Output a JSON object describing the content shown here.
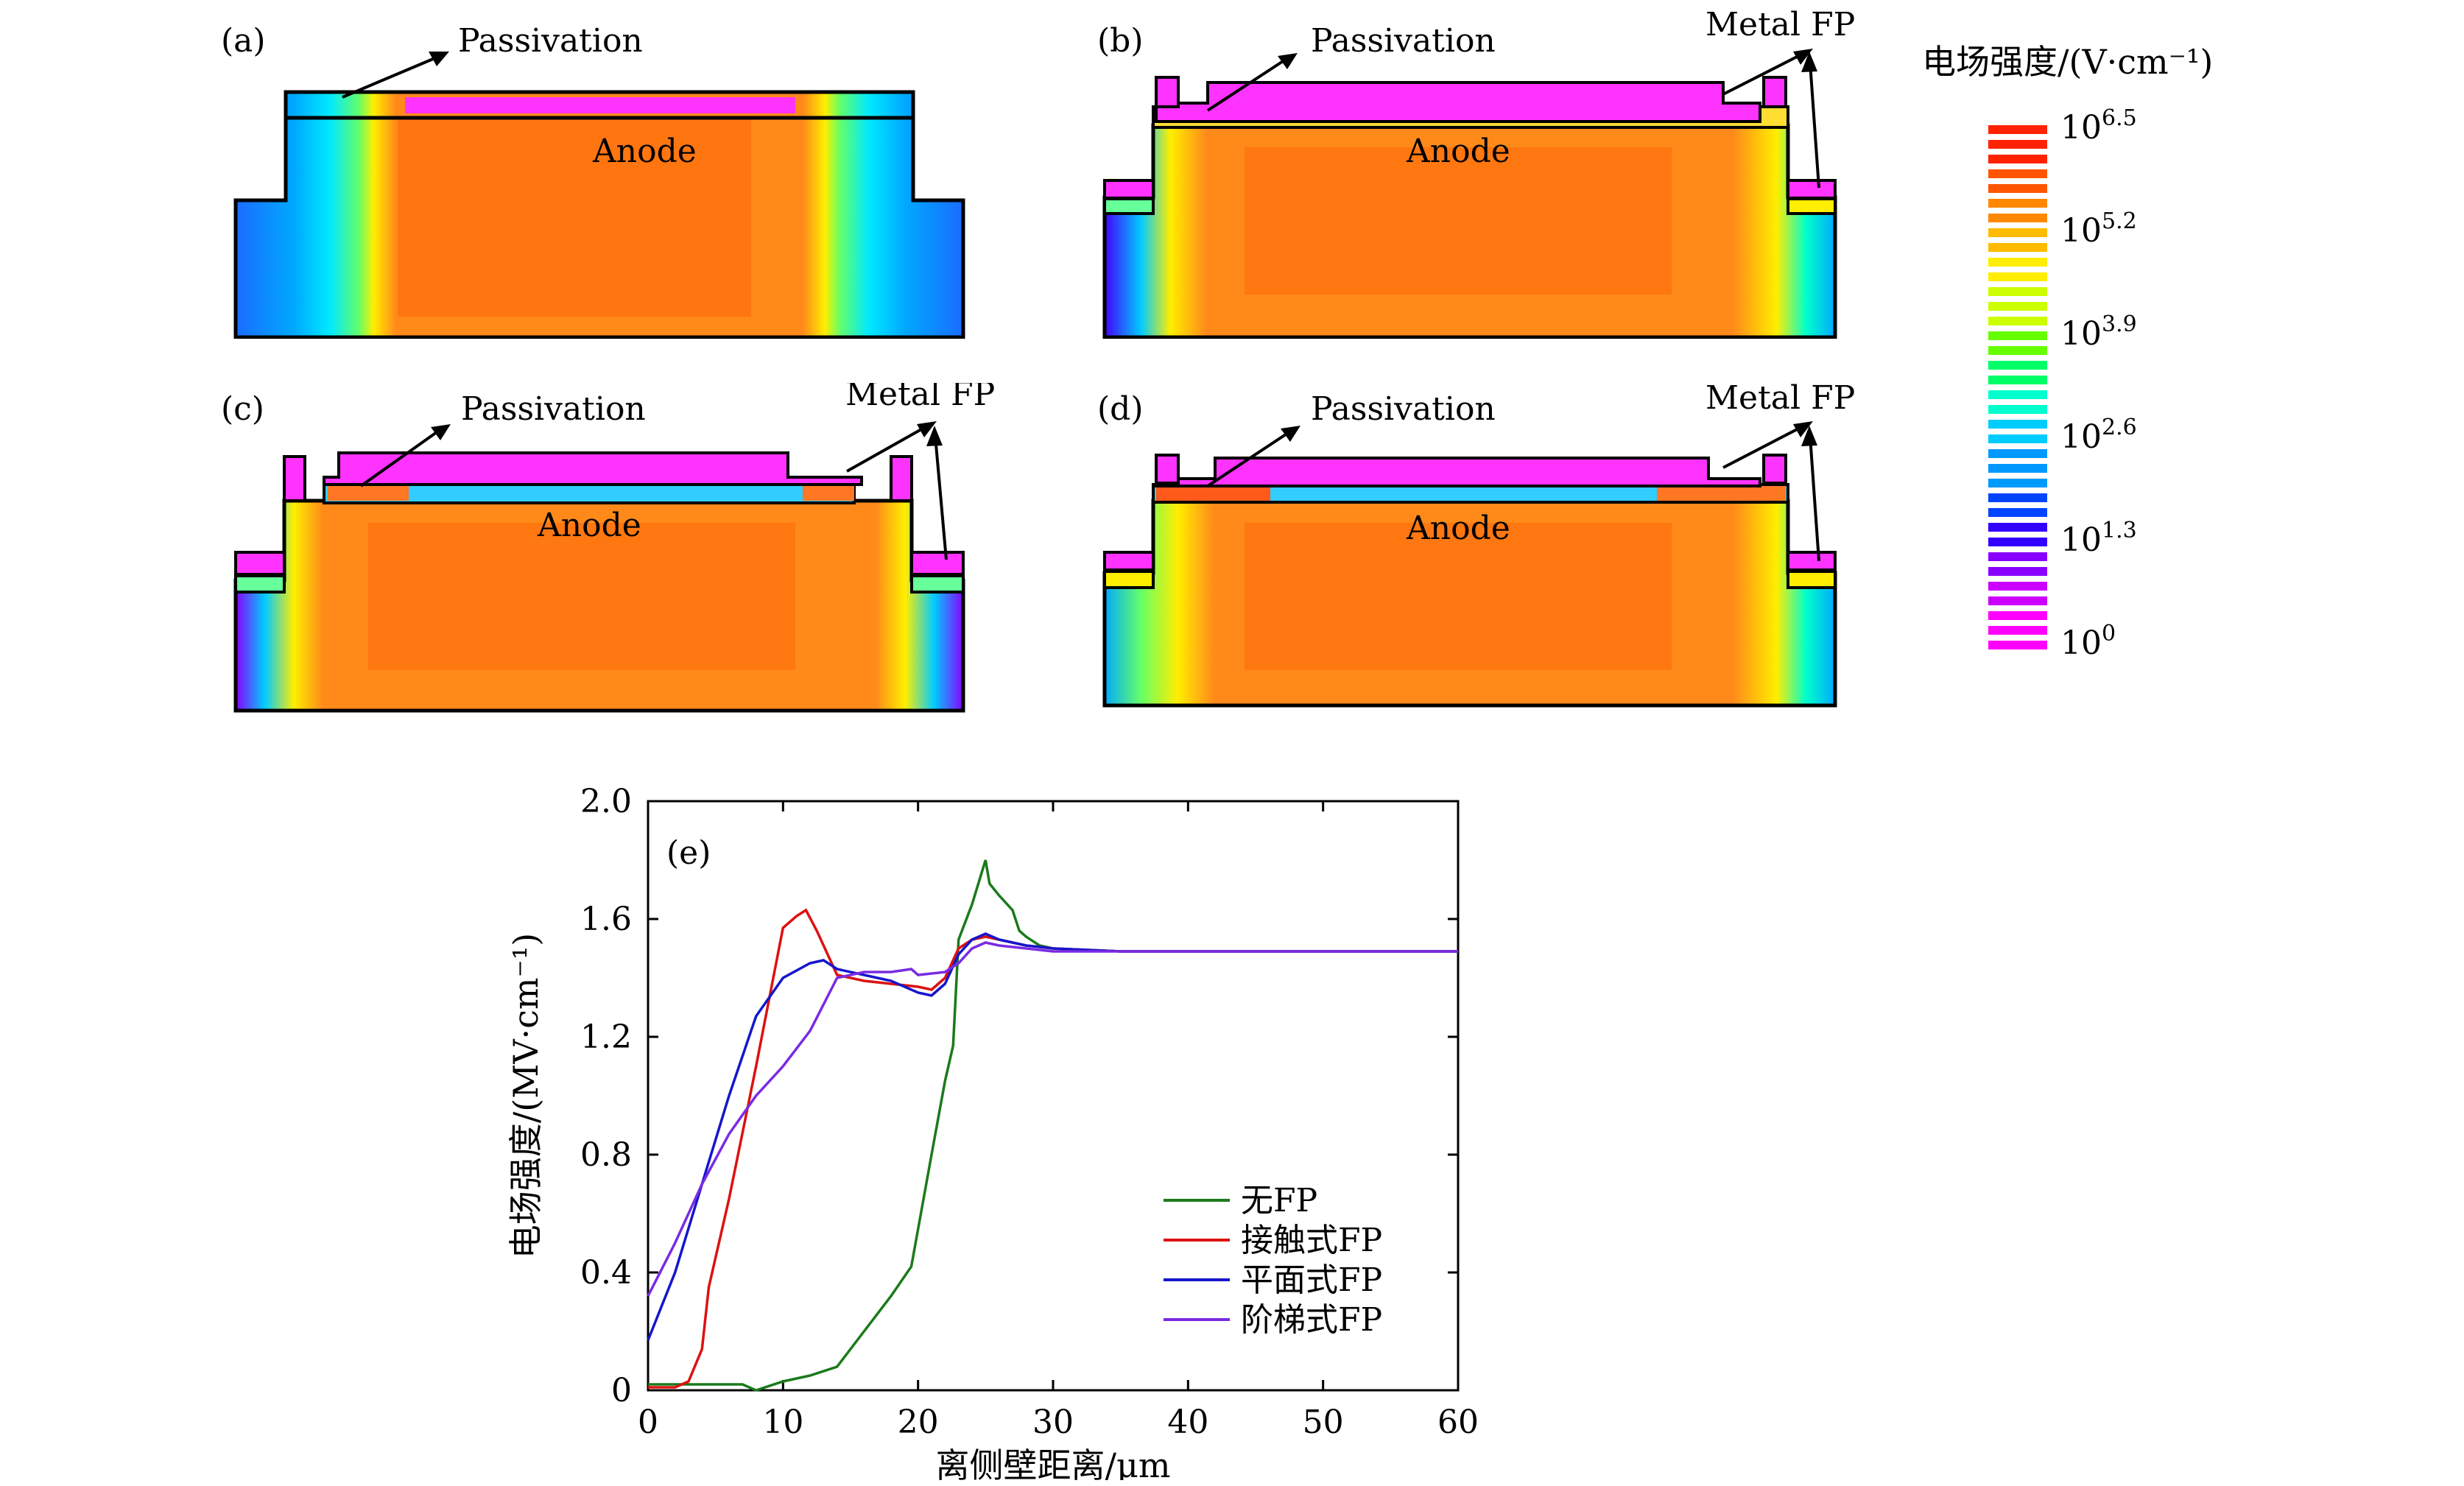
{
  "panels": [
    {
      "letter": "(a)",
      "passivation": "Passivation",
      "anode": "Anode",
      "metal_fp": ""
    },
    {
      "letter": "(b)",
      "passivation": "Passivation",
      "anode": "Anode",
      "metal_fp": "Metal FP"
    },
    {
      "letter": "(c)",
      "passivation": "Passivation",
      "anode": "Anode",
      "metal_fp": "Metal FP"
    },
    {
      "letter": "(d)",
      "passivation": "Passivation",
      "anode": "Anode",
      "metal_fp": "Metal FP"
    }
  ],
  "colorbar": {
    "title": "电场强度/(V·cm⁻¹)",
    "tick_base": "10",
    "ticks": [
      {
        "exp": "6.5"
      },
      {
        "exp": "5.2"
      },
      {
        "exp": "3.9"
      },
      {
        "exp": "2.6"
      },
      {
        "exp": "1.3"
      },
      {
        "exp": "0"
      }
    ],
    "colors": [
      "#ff00ff",
      "#cc00ff",
      "#8800ff",
      "#3300ff",
      "#0044ff",
      "#0099ff",
      "#00ccff",
      "#00ffcc",
      "#00ff66",
      "#66ff00",
      "#ccff00",
      "#ffee00",
      "#ffbb00",
      "#ff8800",
      "#ff5500",
      "#ff2200"
    ]
  },
  "chart_data": {
    "type": "line",
    "panel_label": "(e)",
    "xlabel": "离侧壁距离/μm",
    "ylabel": "电场强度/(MV·cm⁻¹)",
    "xlim": [
      0,
      60
    ],
    "ylim": [
      0,
      2.0
    ],
    "xticks": [
      "0",
      "10",
      "20",
      "30",
      "40",
      "50",
      "60"
    ],
    "yticks": [
      "0",
      "0.4",
      "0.8",
      "1.2",
      "1.6",
      "2.0"
    ],
    "legend_position": "bottom-right",
    "series": [
      {
        "name": "无FP",
        "color": "#1b7a1b",
        "x": [
          0,
          5,
          7,
          8,
          10,
          12,
          14,
          16,
          18,
          19.5,
          21,
          22,
          22.6,
          23,
          24,
          25,
          25.3,
          26,
          27,
          27.5,
          28,
          29,
          30,
          35,
          60
        ],
        "y": [
          0.02,
          0.02,
          0.02,
          0.0,
          0.03,
          0.05,
          0.08,
          0.2,
          0.32,
          0.42,
          0.8,
          1.05,
          1.17,
          1.53,
          1.65,
          1.8,
          1.72,
          1.68,
          1.63,
          1.56,
          1.54,
          1.51,
          1.5,
          1.49,
          1.49
        ]
      },
      {
        "name": "接触式FP",
        "color": "#dd1111",
        "x": [
          0,
          2,
          3,
          4,
          4.5,
          6,
          8,
          10,
          11,
          11.7,
          12.5,
          14,
          16,
          18,
          20,
          21,
          22,
          23,
          24,
          25,
          26,
          28,
          30,
          35,
          60
        ],
        "y": [
          0.01,
          0.01,
          0.03,
          0.14,
          0.35,
          0.65,
          1.1,
          1.57,
          1.61,
          1.63,
          1.56,
          1.41,
          1.39,
          1.38,
          1.37,
          1.36,
          1.4,
          1.5,
          1.53,
          1.54,
          1.53,
          1.51,
          1.5,
          1.49,
          1.49
        ]
      },
      {
        "name": "平面式FP",
        "color": "#1515cc",
        "x": [
          0,
          2,
          4,
          6,
          8,
          10,
          12,
          13,
          14,
          16,
          18,
          20,
          21,
          22,
          23,
          24,
          25,
          26,
          28,
          30,
          35,
          60
        ],
        "y": [
          0.17,
          0.4,
          0.7,
          1.0,
          1.27,
          1.4,
          1.45,
          1.46,
          1.43,
          1.41,
          1.39,
          1.35,
          1.34,
          1.38,
          1.48,
          1.53,
          1.55,
          1.53,
          1.51,
          1.5,
          1.49,
          1.49
        ]
      },
      {
        "name": "阶梯式FP",
        "color": "#7a2be2",
        "x": [
          0,
          2,
          4,
          6,
          8,
          10,
          12,
          14,
          16,
          18,
          19.5,
          20,
          22,
          23,
          24,
          25,
          26,
          28,
          30,
          35,
          60
        ],
        "y": [
          0.32,
          0.5,
          0.7,
          0.87,
          1.0,
          1.1,
          1.22,
          1.4,
          1.42,
          1.42,
          1.43,
          1.41,
          1.42,
          1.45,
          1.5,
          1.52,
          1.51,
          1.5,
          1.49,
          1.49,
          1.49
        ]
      }
    ]
  }
}
